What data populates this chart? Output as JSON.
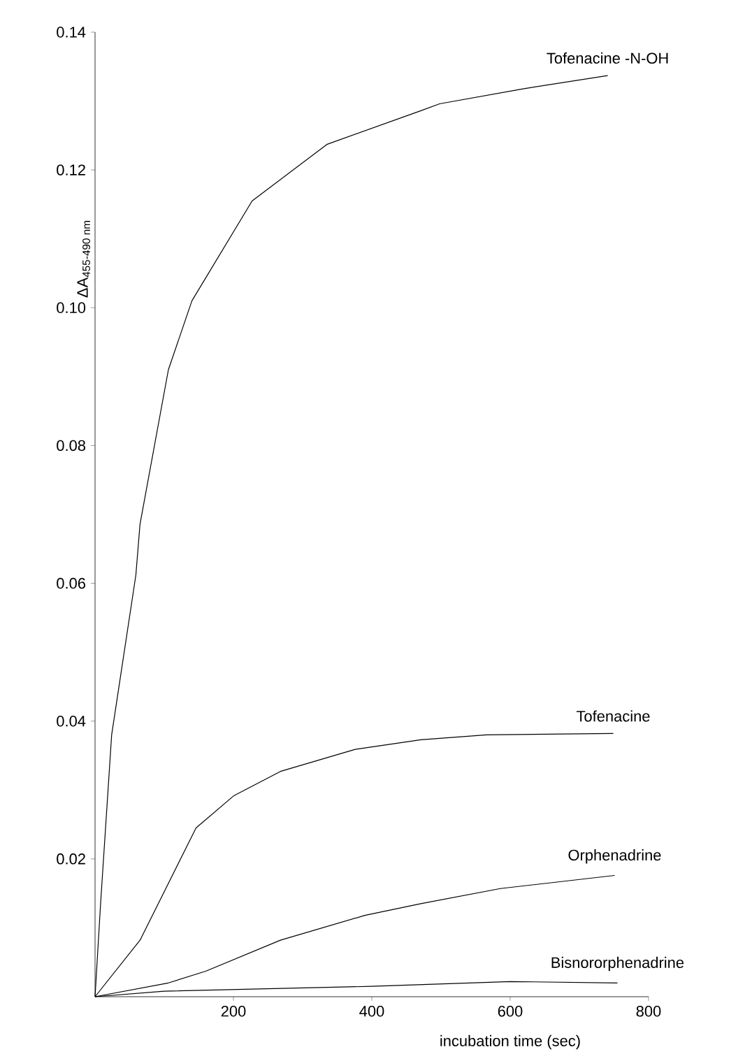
{
  "chart_data": {
    "type": "line",
    "xlabel": "incubation time (sec)",
    "ylabel": "ΔA$_{455-490 nm}$",
    "xlim": [
      0,
      800
    ],
    "ylim": [
      0,
      0.14
    ],
    "xticks": [
      200,
      400,
      600,
      800
    ],
    "yticks": [
      0.02,
      0.04,
      0.06,
      0.08,
      {
        "value": 0.1,
        "label": "0.10"
      },
      0.12,
      0.14
    ],
    "grid": false,
    "legend": false,
    "marker": "none",
    "line_style": "solid",
    "series": [
      {
        "name": "Tofenacine -N-OH",
        "color": "#000000",
        "x": [
          0,
          8,
          24,
          59,
          65,
          106,
          140,
          227,
          335,
          471,
          498,
          620,
          741
        ],
        "values": [
          0,
          0.0135,
          0.038,
          0.0612,
          0.0686,
          0.091,
          0.101,
          0.1155,
          0.1237,
          0.1286,
          0.1296,
          0.1318,
          0.1337
        ]
      },
      {
        "name": "Tofenacine",
        "color": "#000000",
        "x": [
          0,
          65,
          146,
          201,
          268,
          376,
          471,
          566,
          749
        ],
        "values": [
          0,
          0.0082,
          0.0245,
          0.0292,
          0.0327,
          0.0359,
          0.0373,
          0.038,
          0.0382
        ]
      },
      {
        "name": "Orphenadrine",
        "color": "#000000",
        "x": [
          0,
          106,
          160,
          268,
          390,
          471,
          586,
          751
        ],
        "values": [
          0,
          0.002,
          0.0037,
          0.0082,
          0.0118,
          0.0135,
          0.0157,
          0.0176
        ]
      },
      {
        "name": "Bisnororphenadrine",
        "color": "#000000",
        "x": [
          0,
          100,
          400,
          600,
          755
        ],
        "values": [
          0,
          0.0008,
          0.0015,
          0.0022,
          0.002
        ]
      }
    ]
  }
}
